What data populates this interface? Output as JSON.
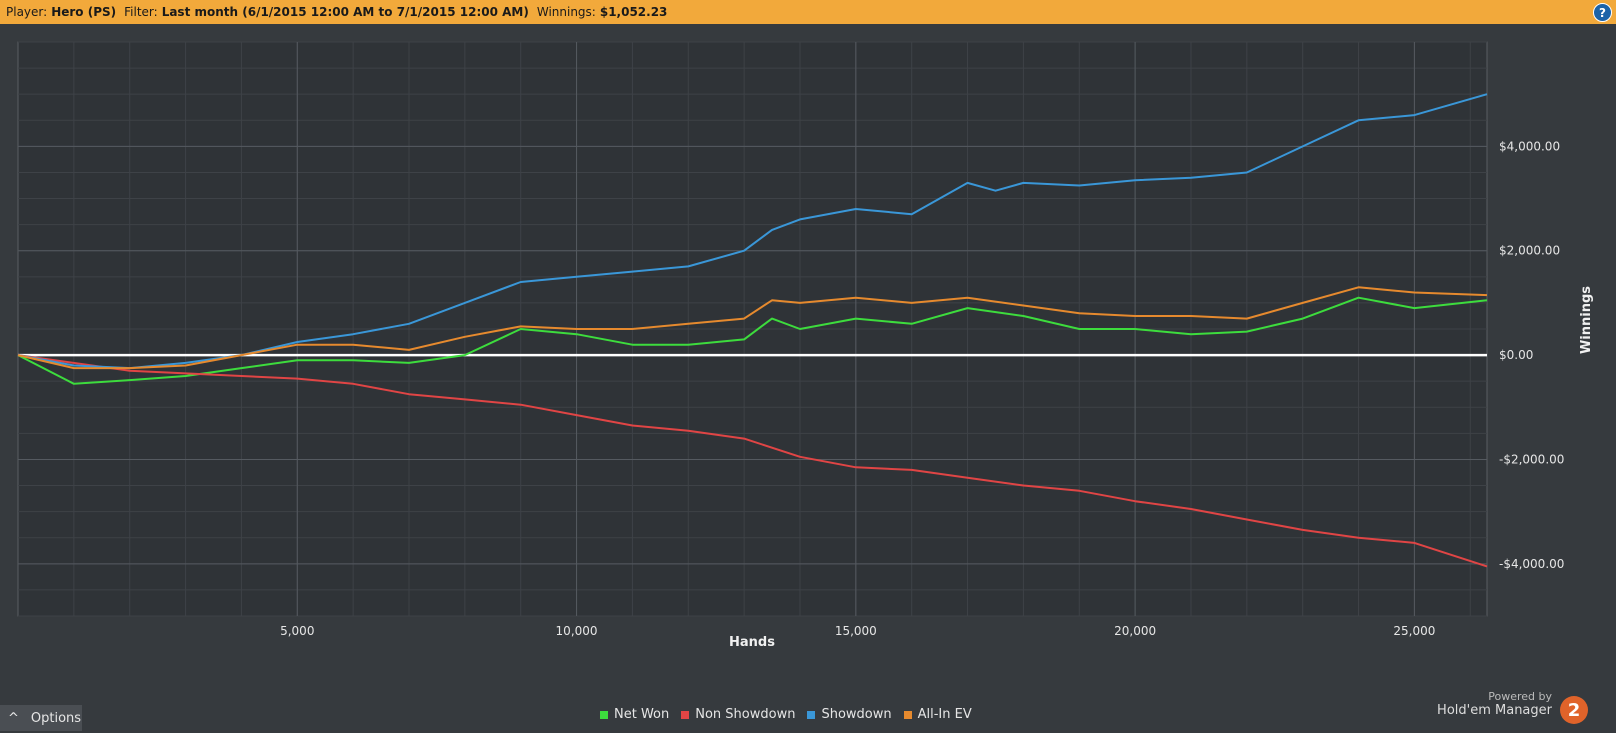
{
  "header": {
    "player_label": "Player:",
    "player_value": "Hero (PS)",
    "filter_label": "Filter:",
    "filter_value": "Last month (6/1/2015 12:00 AM to 7/1/2015 12:00 AM)",
    "winnings_label": "Winnings:",
    "winnings_value": "$1,052.23",
    "help_icon": "?"
  },
  "footer": {
    "options_label": "Options",
    "powered_by": "Powered by",
    "brand": "Hold'em Manager",
    "brand_badge": "2"
  },
  "chart_data": {
    "type": "line",
    "xlabel": "Hands",
    "ylabel": "Winnings",
    "xlim": [
      0,
      26300
    ],
    "ylim": [
      -5000,
      6000
    ],
    "x_ticks": [
      5000,
      10000,
      15000,
      20000,
      25000
    ],
    "x_tick_labels": [
      "5,000",
      "10,000",
      "15,000",
      "20,000",
      "25,000"
    ],
    "y_ticks": [
      4000,
      2000,
      0,
      -2000,
      -4000
    ],
    "y_tick_labels": [
      "$4,000.00",
      "$2,000.00",
      "$0.00",
      "-$2,000.00",
      "-$4,000.00"
    ],
    "grid": true,
    "legend_position": "bottom",
    "series": [
      {
        "name": "Net Won",
        "color": "#3ddc3d",
        "x": [
          0,
          1000,
          2000,
          3000,
          4000,
          5000,
          6000,
          7000,
          8000,
          9000,
          10000,
          11000,
          12000,
          13000,
          13500,
          14000,
          15000,
          16000,
          17000,
          18000,
          19000,
          20000,
          21000,
          22000,
          23000,
          24000,
          25000,
          26300
        ],
        "y": [
          0,
          -550,
          -480,
          -400,
          -250,
          -100,
          -100,
          -150,
          0,
          500,
          400,
          200,
          200,
          300,
          700,
          500,
          700,
          600,
          900,
          750,
          500,
          500,
          400,
          450,
          700,
          1100,
          900,
          1050
        ]
      },
      {
        "name": "Non Showdown",
        "color": "#e04545",
        "x": [
          0,
          2000,
          4000,
          5000,
          6000,
          7000,
          8000,
          9000,
          10000,
          11000,
          12000,
          13000,
          14000,
          15000,
          16000,
          17000,
          18000,
          19000,
          20000,
          21000,
          22000,
          23000,
          24000,
          25000,
          26300
        ],
        "y": [
          0,
          -300,
          -400,
          -450,
          -550,
          -750,
          -850,
          -950,
          -1150,
          -1350,
          -1450,
          -1600,
          -1950,
          -2150,
          -2200,
          -2350,
          -2500,
          -2600,
          -2800,
          -2950,
          -3150,
          -3350,
          -3500,
          -3600,
          -4050
        ]
      },
      {
        "name": "Showdown",
        "color": "#3a97d8",
        "x": [
          0,
          1000,
          2000,
          3000,
          4000,
          5000,
          6000,
          7000,
          8000,
          9000,
          10000,
          11000,
          12000,
          13000,
          13500,
          14000,
          15000,
          16000,
          17000,
          17500,
          18000,
          19000,
          20000,
          21000,
          22000,
          23000,
          24000,
          25000,
          26300
        ],
        "y": [
          0,
          -200,
          -250,
          -150,
          0,
          250,
          400,
          600,
          1000,
          1400,
          1500,
          1600,
          1700,
          2000,
          2400,
          2600,
          2800,
          2700,
          3300,
          3150,
          3300,
          3250,
          3350,
          3400,
          3500,
          4000,
          4500,
          4600,
          5000
        ]
      },
      {
        "name": "All-In EV",
        "color": "#e68a2e",
        "x": [
          0,
          1000,
          2000,
          3000,
          4000,
          5000,
          6000,
          7000,
          8000,
          9000,
          10000,
          11000,
          12000,
          13000,
          13500,
          14000,
          15000,
          16000,
          17000,
          18000,
          19000,
          20000,
          21000,
          22000,
          23000,
          24000,
          25000,
          26300
        ],
        "y": [
          0,
          -250,
          -250,
          -200,
          0,
          200,
          200,
          100,
          350,
          550,
          500,
          500,
          600,
          700,
          1050,
          1000,
          1100,
          1000,
          1100,
          950,
          800,
          750,
          750,
          700,
          1000,
          1300,
          1200,
          1150
        ]
      }
    ],
    "baseline_y": 0
  }
}
